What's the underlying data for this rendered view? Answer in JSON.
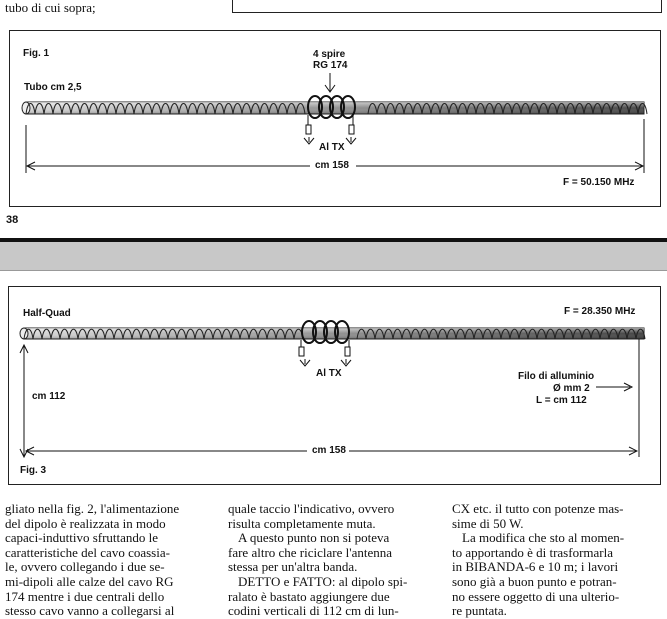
{
  "top": {
    "text": "tubo di cui sopra;"
  },
  "fig1": {
    "fig_label": "Fig. 1",
    "tube_label": "Tubo cm 2,5",
    "coil_label_line1": "4 spire",
    "coil_label_line2": "RG 174",
    "tx_label": "Al TX",
    "length_label": "cm 158",
    "freq_label": "F = 50.150 MHz"
  },
  "page_number": "38",
  "fig3": {
    "title": "Half-Quad",
    "freq_label": "F = 28.350 MHz",
    "tx_label": "Al TX",
    "wire_line1": "Filo di alluminio",
    "wire_line2": "Ø mm 2",
    "wire_line3": "L = cm 112",
    "height_label": "cm 112",
    "length_label": "cm 158",
    "fig_label": "Fig. 3"
  },
  "columns": [
    {
      "lines": [
        "gliato nella fig. 2, l'alimentazione",
        "del dipolo è realizzata in modo",
        "capaci-induttivo sfruttando le",
        "caratteristiche del cavo coassia-",
        "le, ovvero collegando i due se-",
        "mi-dipoli alle calze del cavo RG",
        "174 mentre i due centrali dello",
        "stesso cavo vanno a collegarsi al"
      ]
    },
    {
      "lines": [
        "quale taccio l'indicativo, ovvero",
        "risulta completamente muta.",
        "A questo punto non si poteva",
        "fare altro che riciclare l'antenna",
        "stessa per un'altra banda.",
        "DETTO e FATTO: al dipolo spi-",
        "ralato è bastato aggiungere due",
        "codini verticali di 112 cm di lun-"
      ]
    },
    {
      "lines": [
        "CX etc. il tutto con potenze mas-",
        "sime di 50 W.",
        "La modifica che sto al momen-",
        "to apportando è di trasformarla",
        "in BIBANDA-6 e 10 m; i lavori",
        "sono già a buon punto e potran-",
        "no essere oggetto di una ulterio-",
        "re puntata."
      ]
    }
  ]
}
